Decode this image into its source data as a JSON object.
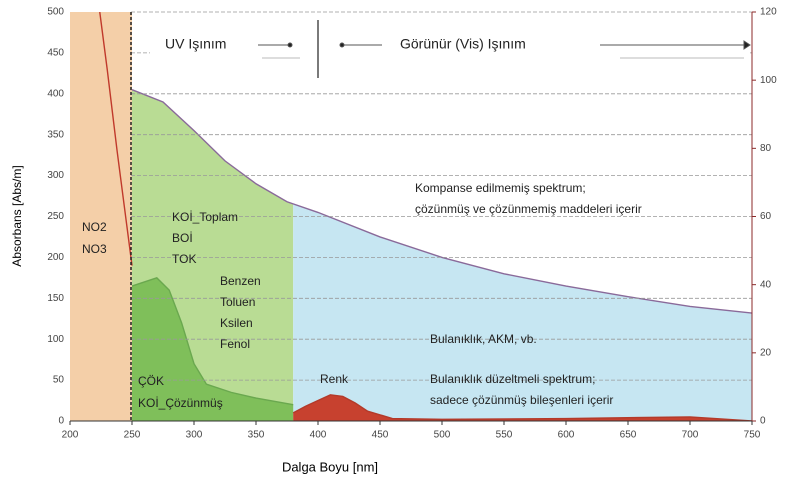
{
  "chart_data": {
    "type": "area",
    "xlabel": "Dalga Boyu [nm]",
    "ylabel": "Absorbans [Abs/m]",
    "xlim": [
      200,
      750
    ],
    "xticks": [
      200,
      250,
      300,
      350,
      400,
      450,
      500,
      550,
      600,
      650,
      700,
      750
    ],
    "ylim": [
      0,
      500
    ],
    "yticks": [
      0,
      50,
      100,
      150,
      200,
      250,
      300,
      350,
      400,
      450,
      500
    ],
    "y2lim": [
      0,
      120
    ],
    "y2ticks": [
      0,
      20,
      40,
      60,
      80,
      100,
      120
    ],
    "grid": true,
    "series": [
      {
        "color": "#8a6a9a",
        "fills": [
          "#b9dc94",
          "#c6e6f2"
        ],
        "fill_break": 380,
        "x": [
          250,
          275,
          300,
          325,
          350,
          375,
          400,
          450,
          500,
          550,
          600,
          650,
          700,
          750
        ],
        "values": [
          405,
          390,
          355,
          318,
          290,
          268,
          255,
          225,
          200,
          180,
          165,
          152,
          140,
          132
        ]
      },
      {
        "color": "#6aa84f",
        "fills": [
          "#7fbf5a"
        ],
        "x": [
          250,
          260,
          270,
          280,
          290,
          300,
          310,
          330,
          350,
          380
        ],
        "values": [
          165,
          170,
          175,
          160,
          120,
          70,
          45,
          35,
          28,
          20
        ]
      },
      {
        "color": "#b33a2a",
        "fills": [
          "#c7412f"
        ],
        "x": [
          380,
          390,
          400,
          410,
          420,
          430,
          440,
          460,
          500,
          600,
          700,
          750
        ],
        "values": [
          10,
          18,
          25,
          32,
          30,
          22,
          12,
          3,
          2,
          3,
          5,
          0
        ]
      },
      {
        "color": "#c0392b",
        "fills": [],
        "x": [
          224,
          230,
          238,
          244,
          250
        ],
        "values": [
          500,
          430,
          330,
          260,
          190
        ]
      }
    ],
    "annotations": [
      "UV Işınım",
      "Görünür (Vis) Işınım",
      "NO2",
      "NO3",
      "KOİ_Toplam",
      "BOİ",
      "TOK",
      "Benzen",
      "Toluen",
      "Ksilen",
      "Fenol",
      "ÇÖK",
      "KOİ_Çözünmüş",
      "Renk",
      "Kompanse edilmemiş spektrum;",
      "çözünmüş ve çözünmemiş maddeleri içerir",
      "Bulanıklık, AKM, vb.",
      "Bulanıklık düzeltmeli spektrum;",
      "sadece çözünmüş bileşenleri içerir"
    ]
  }
}
